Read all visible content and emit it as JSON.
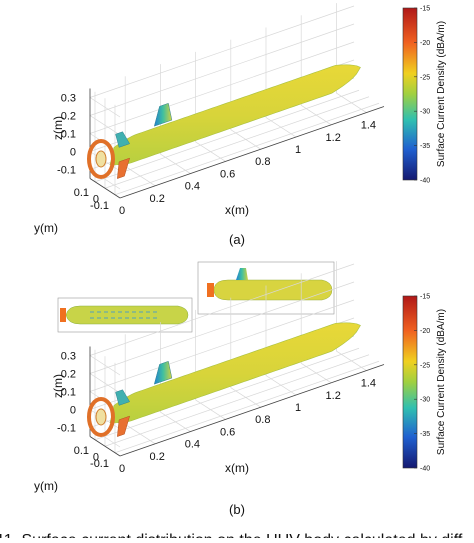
{
  "figure": {
    "panels": [
      {
        "label": "(a)",
        "axes": {
          "x_label": "x(m)",
          "y_label": "y(m)",
          "z_label": "z(m)",
          "x_ticks": [
            0,
            0.2,
            0.4,
            0.6,
            0.8,
            1,
            1.2,
            1.4
          ],
          "y_ticks": [
            0.1,
            0,
            -0.1
          ],
          "z_ticks": [
            0.3,
            0.2,
            0.1,
            0,
            -0.1
          ]
        },
        "colorbar": {
          "label": "Surface Current Density (dBA/m)",
          "ticks": [
            -15,
            -20,
            -25,
            -30,
            -35,
            -40
          ]
        }
      },
      {
        "label": "(b)",
        "axes": {
          "x_label": "x(m)",
          "y_label": "y(m)",
          "z_label": "z(m)",
          "x_ticks": [
            0,
            0.2,
            0.4,
            0.6,
            0.8,
            1,
            1.2,
            1.4
          ],
          "y_ticks": [
            0.1,
            0,
            -0.1
          ],
          "z_ticks": [
            0.3,
            0.2,
            0.1,
            0,
            -0.1
          ]
        },
        "colorbar": {
          "label": "Surface Current Density (dBA/m)",
          "ticks": [
            -15,
            -20,
            -25,
            -30,
            -35,
            -40
          ]
        }
      }
    ],
    "caption": "11.   Surface current distribution on the UUV body calculated by diff"
  }
}
